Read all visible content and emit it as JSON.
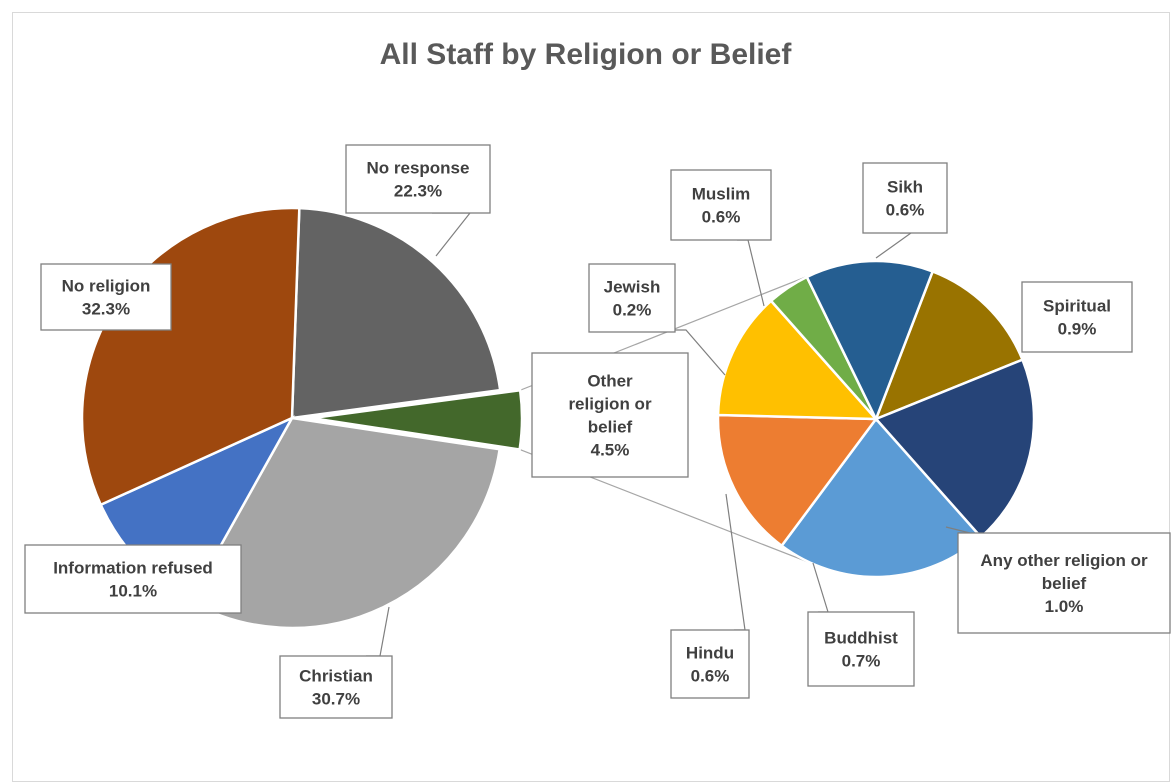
{
  "chart_data": {
    "type": "pie",
    "title": "All Staff by Religion or Belief",
    "main": [
      {
        "label": "No response",
        "value": 22.3,
        "value_label": "22.3%",
        "color": "#636363"
      },
      {
        "label": "Other religion or belief",
        "value": 4.5,
        "value_label": "4.5%",
        "color": "#43682b"
      },
      {
        "label": "Christian",
        "value": 30.7,
        "value_label": "30.7%",
        "color": "#a5a5a5"
      },
      {
        "label": "Information refused",
        "value": 10.1,
        "value_label": "10.1%",
        "color": "#4472c4"
      },
      {
        "label": "No religion",
        "value": 32.3,
        "value_label": "32.3%",
        "color": "#9e480e"
      }
    ],
    "breakout_of": "Other religion or belief",
    "breakout": [
      {
        "label": "Sikh",
        "value": 0.6,
        "value_label": "0.6%",
        "color": "#997300"
      },
      {
        "label": "Spiritual",
        "value": 0.9,
        "value_label": "0.9%",
        "color": "#264478"
      },
      {
        "label": "Any other religion or belief",
        "value": 1.0,
        "value_label": "1.0%",
        "color": "#5b9bd5"
      },
      {
        "label": "Buddhist",
        "value": 0.7,
        "value_label": "0.7%",
        "color": "#ed7d31"
      },
      {
        "label": "Hindu",
        "value": 0.6,
        "value_label": "0.6%",
        "color": "#ffc000"
      },
      {
        "label": "Jewish",
        "value": 0.2,
        "value_label": "0.2%",
        "color": "#70ad47"
      },
      {
        "label": "Muslim",
        "value": 0.6,
        "value_label": "0.6%",
        "color": "#255e91"
      }
    ]
  }
}
